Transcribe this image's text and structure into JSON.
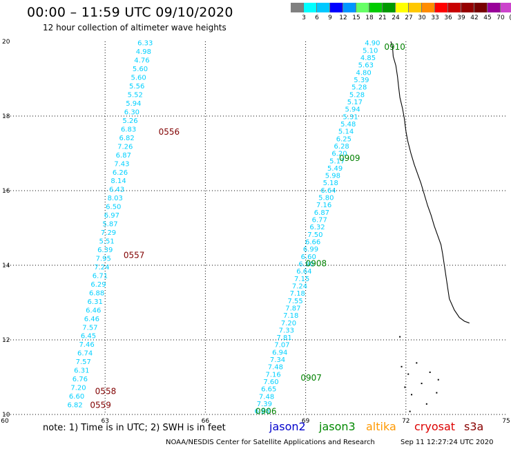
{
  "header": {
    "title": "00:00 – 11:59 UTC 09/10/2020",
    "subtitle": "12 hour collection of altimeter wave heights"
  },
  "color_scale": {
    "colors": [
      "#808080",
      "#00ffff",
      "#00c8ff",
      "#0000ff",
      "#0096ff",
      "#66ff66",
      "#00cc00",
      "#009900",
      "#ffff00",
      "#ffc800",
      "#ff8c00",
      "#ff0000",
      "#c80000",
      "#960000",
      "#780000",
      "#990099",
      "#cc44cc",
      "#ff88ff",
      "#000000"
    ],
    "labels": [
      "3",
      "6",
      "9",
      "12",
      "15",
      "18",
      "21",
      "24",
      "27",
      "30",
      "33",
      "36",
      "39",
      "42",
      "45",
      "70",
      "(ft)"
    ]
  },
  "map": {
    "x_ticks": [
      "60",
      "63",
      "66",
      "69",
      "72",
      "75"
    ],
    "y_ticks": [
      "20",
      "18",
      "16",
      "14",
      "12",
      "10"
    ],
    "coast_color": "#000000",
    "track_color": "#00d0ff",
    "track_west": {
      "passes": [
        {
          "label": "0556",
          "lat": 17.57,
          "color": "#800000"
        },
        {
          "label": "0557",
          "lat": 14.27,
          "color": "#800000"
        },
        {
          "label": "0558",
          "lat": 10.62,
          "color": "#800000"
        },
        {
          "label": "0559",
          "lat": 10.25,
          "color": "#800000"
        }
      ],
      "values": [
        "6.33",
        "4.98",
        "4.76",
        "5.60",
        "5.60",
        "5.56",
        "5.52",
        "5.94",
        "6.30",
        "5.26",
        "6.83",
        "6.82",
        "7.26",
        "6.87",
        "7.43",
        "6.26",
        "8.14",
        "6.43",
        "8.03",
        "6.50",
        "6.97",
        "5.87",
        "7.29",
        "5.51",
        "6.39",
        "7.95",
        "7.24",
        "6.71",
        "6.29",
        "6.88",
        "6.31",
        "6.46",
        "6.46",
        "7.57",
        "6.45",
        "7.46",
        "6.74",
        "7.57",
        "6.31",
        "6.76",
        "7.20",
        "6.60",
        "6.82"
      ]
    },
    "track_east": {
      "passes": [
        {
          "label": "0910",
          "lat": 19.85,
          "color": "#008000"
        },
        {
          "label": "0909",
          "lat": 16.87,
          "color": "#008000"
        },
        {
          "label": "0908",
          "lat": 14.05,
          "color": "#008000"
        },
        {
          "label": "0907",
          "lat": 10.98,
          "color": "#008000"
        },
        {
          "label": "0906",
          "lat": 10.08,
          "color": "#008000"
        }
      ],
      "values": [
        "4.90",
        "5.10",
        "4.85",
        "5.63",
        "4.80",
        "5.39",
        "5.28",
        "5.28",
        "5.17",
        "5.94",
        "5.31",
        "5.48",
        "5.14",
        "6.25",
        "6.28",
        "6.20",
        "5.17",
        "5.49",
        "5.98",
        "5.18",
        "6.64",
        "5.80",
        "7.16",
        "6.87",
        "6.77",
        "6.32",
        "7.50",
        "6.66",
        "6.99",
        "6.60",
        "6.90",
        "6.64",
        "7.15",
        "7.24",
        "7.18",
        "7.55",
        "7.87",
        "7.18",
        "7.20",
        "7.33",
        "7.81",
        "7.07",
        "6.94",
        "7.34",
        "7.48",
        "7.16",
        "7.60",
        "6.65",
        "7.48",
        "7.39",
        "6.88"
      ]
    }
  },
  "footer": {
    "note": "note:  1) Time is in UTC;  2) SWH is in feet",
    "legend": [
      {
        "name": "jason2",
        "color": "#0000cc"
      },
      {
        "name": "jason3",
        "color": "#008800"
      },
      {
        "name": "altika",
        "color": "#ff9900"
      },
      {
        "name": "cryosat",
        "color": "#dd0000"
      },
      {
        "name": "s3a",
        "color": "#880000"
      }
    ],
    "credit": "NOAA/NESDIS Center for Satellite Applications and Research",
    "timestamp": "Sep 11 12:27:24 UTC 2020"
  }
}
